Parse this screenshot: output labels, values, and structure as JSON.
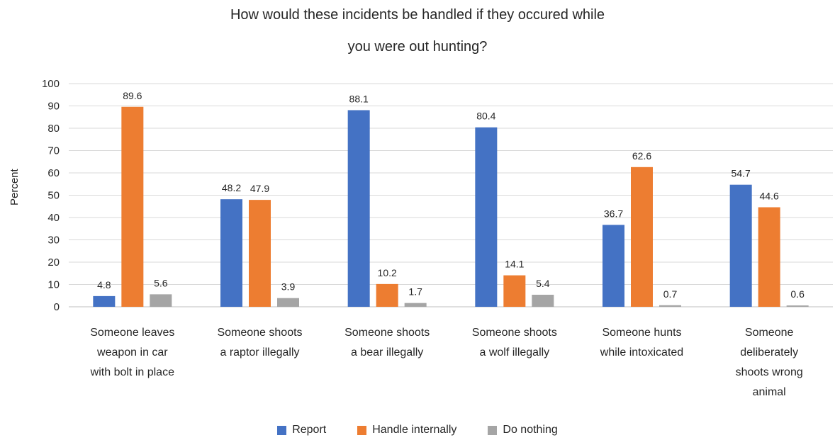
{
  "chart_data": {
    "type": "bar",
    "title_lines": [
      "How would these incidents be handled if they occured while",
      "you were out hunting?"
    ],
    "xlabel": "",
    "ylabel": "Percent",
    "ylim": [
      0,
      100
    ],
    "yticks": [
      0,
      10,
      20,
      30,
      40,
      50,
      60,
      70,
      80,
      90,
      100
    ],
    "grid": true,
    "legend_position": "bottom",
    "categories": [
      [
        "Someone leaves",
        "weapon in car",
        "with bolt in place"
      ],
      [
        "Someone shoots",
        "a raptor illegally"
      ],
      [
        "Someone shoots",
        "a bear illegally"
      ],
      [
        "Someone shoots",
        "a wolf illegally"
      ],
      [
        "Someone hunts",
        "while intoxicated"
      ],
      [
        "Someone",
        "deliberately",
        "shoots wrong",
        "animal"
      ]
    ],
    "series": [
      {
        "name": "Report",
        "color": "#4472C4",
        "values": [
          4.8,
          48.2,
          88.1,
          80.4,
          36.7,
          54.7
        ]
      },
      {
        "name": "Handle internally",
        "color": "#ED7D31",
        "values": [
          89.6,
          47.9,
          10.2,
          14.1,
          62.6,
          44.6
        ]
      },
      {
        "name": "Do nothing",
        "color": "#A5A5A5",
        "values": [
          5.6,
          3.9,
          1.7,
          5.4,
          0.7,
          0.6
        ]
      }
    ]
  }
}
